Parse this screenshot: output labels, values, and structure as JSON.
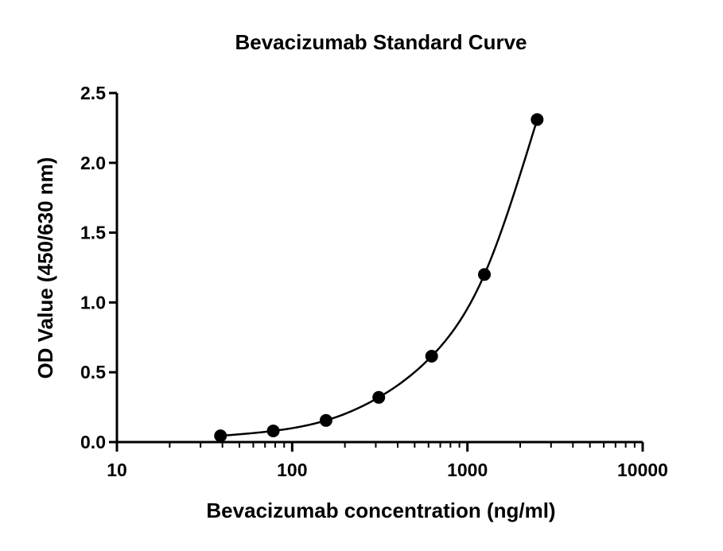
{
  "chart_data": {
    "type": "scatter",
    "title": "Bevacizumab Standard Curve",
    "xlabel": "Bevacizumab concentration (ng/ml)",
    "ylabel": "OD Value (450/630 nm)",
    "x_scale": "log",
    "xlim": [
      10,
      10000
    ],
    "ylim": [
      0,
      2.5
    ],
    "x_ticks": [
      10,
      100,
      1000,
      10000
    ],
    "x_tick_labels": [
      "10",
      "100",
      "1000",
      "10000"
    ],
    "y_ticks": [
      0,
      0.5,
      1.0,
      1.5,
      2.0,
      2.5
    ],
    "y_tick_labels": [
      "0.0",
      "0.5",
      "1.0",
      "1.5",
      "2.0",
      "2.5"
    ],
    "grid": false,
    "legend": "none",
    "series": [
      {
        "x": [
          39,
          78,
          156,
          312,
          625,
          1250,
          2500
        ],
        "y": [
          0.045,
          0.08,
          0.155,
          0.32,
          0.615,
          1.2,
          2.31
        ],
        "marker": "filled-circle",
        "fit_curve": true
      }
    ],
    "colors": {
      "marker": "#000000",
      "curve": "#000000",
      "axis": "#000000"
    }
  }
}
